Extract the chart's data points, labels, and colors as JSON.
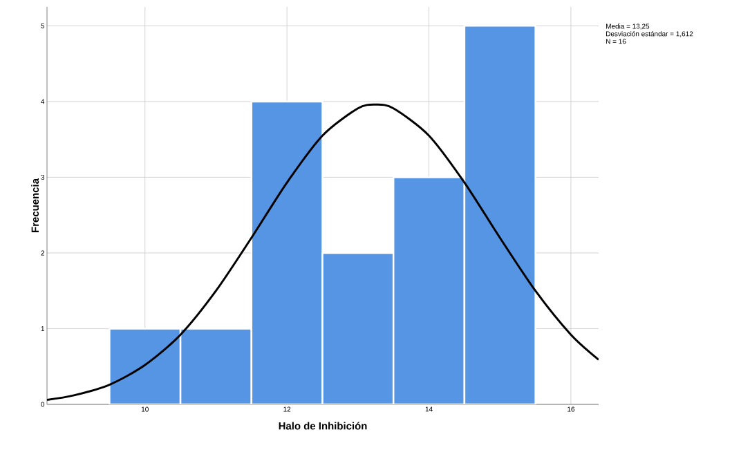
{
  "chart_data": {
    "type": "histogram",
    "xlabel": "Halo de Inhibición",
    "ylabel": "Frecuencia",
    "bins": [
      9.5,
      10.5,
      11.5,
      12.5,
      13.5,
      14.5,
      15.5
    ],
    "values": [
      1,
      1,
      4,
      2,
      3,
      5
    ],
    "color": "#5595e3",
    "series": [
      {
        "type": "line",
        "color": "#000000",
        "x": [
          8.62,
          9,
          9.5,
          10,
          10.5,
          11,
          11.5,
          12,
          12.5,
          13,
          13.25,
          13.5,
          14,
          14.5,
          15,
          15.5,
          16,
          16.39
        ],
        "values": [
          0.06,
          0.12,
          0.26,
          0.52,
          0.92,
          1.5,
          2.2,
          2.93,
          3.55,
          3.91,
          3.96,
          3.91,
          3.55,
          2.93,
          2.2,
          1.5,
          0.92,
          0.59
        ]
      }
    ],
    "xlim": [
      8.62,
      16.39
    ],
    "ylim": [
      0,
      5.25
    ],
    "xticks": [
      10,
      12,
      14,
      16
    ],
    "yticks": [
      0,
      1,
      2,
      3,
      4,
      5
    ],
    "grid": true,
    "annotations": [
      "Media = 13,25",
      "Desviación estándar = 1,612",
      "N = 16"
    ]
  }
}
